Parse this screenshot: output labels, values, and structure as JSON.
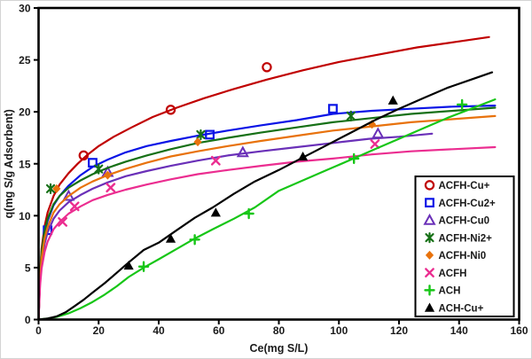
{
  "figure": {
    "background": "#ffffff",
    "frame_color": "#000000",
    "text_color": "#1a1a1a"
  },
  "chart_data": {
    "type": "scatter",
    "title": "",
    "xlabel": "Ce(mg S/L)",
    "ylabel": "q(mg  S/g Adsorbent)",
    "xlim": [
      0,
      160
    ],
    "ylim": [
      0,
      30
    ],
    "xticks": [
      0,
      20,
      40,
      60,
      80,
      100,
      120,
      140,
      160
    ],
    "yticks": [
      0,
      5,
      10,
      15,
      20,
      25,
      30
    ],
    "grid": false,
    "frame": true,
    "legend_position": "lower-right",
    "series": [
      {
        "name": "ACFH-Cu+",
        "color": "#c00000",
        "marker": "circle-open",
        "points": [
          [
            15,
            15.8
          ],
          [
            44,
            20.2
          ],
          [
            76,
            24.3
          ]
        ],
        "curve": [
          [
            0,
            0
          ],
          [
            0.5,
            4.5
          ],
          [
            1,
            6.8
          ],
          [
            2,
            9.0
          ],
          [
            3,
            10.3
          ],
          [
            5,
            11.9
          ],
          [
            7,
            13.0
          ],
          [
            10,
            14.1
          ],
          [
            13,
            15.0
          ],
          [
            16,
            15.8
          ],
          [
            20,
            16.7
          ],
          [
            25,
            17.6
          ],
          [
            31,
            18.5
          ],
          [
            38,
            19.5
          ],
          [
            46,
            20.4
          ],
          [
            55,
            21.3
          ],
          [
            65,
            22.2
          ],
          [
            76,
            23.1
          ],
          [
            88,
            24.0
          ],
          [
            100,
            24.8
          ],
          [
            113,
            25.5
          ],
          [
            126,
            26.2
          ],
          [
            138,
            26.7
          ],
          [
            150,
            27.2
          ]
        ]
      },
      {
        "name": "ACFH-Cu2+",
        "color": "#0a14e6",
        "marker": "square-open",
        "points": [
          [
            3,
            8.6
          ],
          [
            18,
            15.1
          ],
          [
            57,
            17.8
          ],
          [
            98,
            20.3
          ]
        ],
        "curve": [
          [
            0,
            0
          ],
          [
            0.5,
            4.2
          ],
          [
            1,
            6.2
          ],
          [
            2,
            8.3
          ],
          [
            3,
            9.5
          ],
          [
            5,
            11.0
          ],
          [
            7,
            11.9
          ],
          [
            10,
            12.9
          ],
          [
            14,
            13.9
          ],
          [
            18,
            14.7
          ],
          [
            23,
            15.4
          ],
          [
            29,
            16.1
          ],
          [
            36,
            16.7
          ],
          [
            44,
            17.2
          ],
          [
            53,
            17.7
          ],
          [
            63,
            18.2
          ],
          [
            74,
            18.7
          ],
          [
            86,
            19.2
          ],
          [
            98,
            19.8
          ],
          [
            111,
            20.1
          ],
          [
            124,
            20.3
          ],
          [
            138,
            20.5
          ],
          [
            152,
            20.6
          ]
        ]
      },
      {
        "name": "ACFH-Cu0",
        "color": "#6a30b8",
        "marker": "triangle-open",
        "points": [
          [
            10,
            11.9
          ],
          [
            23,
            14.2
          ],
          [
            68,
            16.1
          ],
          [
            113,
            17.9
          ]
        ],
        "curve": [
          [
            0,
            0
          ],
          [
            0.5,
            3.7
          ],
          [
            1,
            5.5
          ],
          [
            2,
            7.3
          ],
          [
            3,
            8.4
          ],
          [
            5,
            9.7
          ],
          [
            7,
            10.5
          ],
          [
            10,
            11.3
          ],
          [
            14,
            12.0
          ],
          [
            18,
            12.6
          ],
          [
            23,
            13.2
          ],
          [
            29,
            13.8
          ],
          [
            36,
            14.3
          ],
          [
            44,
            14.8
          ],
          [
            53,
            15.3
          ],
          [
            63,
            15.8
          ],
          [
            74,
            16.2
          ],
          [
            86,
            16.6
          ],
          [
            98,
            17.0
          ],
          [
            110,
            17.4
          ],
          [
            120,
            17.6
          ],
          [
            131,
            17.9
          ]
        ]
      },
      {
        "name": "ACFH-Ni2+",
        "color": "#167016",
        "marker": "asterisk",
        "points": [
          [
            4,
            12.6
          ],
          [
            20,
            14.5
          ],
          [
            54,
            17.8
          ],
          [
            104,
            19.6
          ]
        ],
        "curve": [
          [
            0,
            0
          ],
          [
            0.5,
            4.4
          ],
          [
            1,
            6.5
          ],
          [
            2,
            8.5
          ],
          [
            3,
            9.7
          ],
          [
            5,
            11.1
          ],
          [
            7,
            11.9
          ],
          [
            10,
            12.7
          ],
          [
            14,
            13.4
          ],
          [
            18,
            14.0
          ],
          [
            23,
            14.6
          ],
          [
            29,
            15.2
          ],
          [
            36,
            15.8
          ],
          [
            44,
            16.4
          ],
          [
            53,
            17.0
          ],
          [
            63,
            17.5
          ],
          [
            74,
            18.0
          ],
          [
            86,
            18.5
          ],
          [
            98,
            19.0
          ],
          [
            111,
            19.4
          ],
          [
            124,
            19.8
          ],
          [
            138,
            20.1
          ],
          [
            152,
            20.4
          ]
        ]
      },
      {
        "name": "ACFH-Ni0",
        "color": "#e8720c",
        "marker": "diamond-filled",
        "points": [
          [
            6,
            12.6
          ],
          [
            23,
            13.9
          ],
          [
            53,
            17.1
          ],
          [
            111,
            18.8
          ]
        ],
        "curve": [
          [
            0,
            0
          ],
          [
            0.5,
            4.0
          ],
          [
            1,
            5.9
          ],
          [
            2,
            7.8
          ],
          [
            3,
            8.9
          ],
          [
            5,
            10.3
          ],
          [
            7,
            11.1
          ],
          [
            10,
            11.9
          ],
          [
            14,
            12.7
          ],
          [
            18,
            13.3
          ],
          [
            23,
            13.9
          ],
          [
            29,
            14.5
          ],
          [
            36,
            15.1
          ],
          [
            44,
            15.7
          ],
          [
            53,
            16.2
          ],
          [
            63,
            16.7
          ],
          [
            74,
            17.2
          ],
          [
            86,
            17.7
          ],
          [
            98,
            18.2
          ],
          [
            111,
            18.6
          ],
          [
            124,
            19.0
          ],
          [
            138,
            19.3
          ],
          [
            152,
            19.6
          ]
        ]
      },
      {
        "name": "ACFH",
        "color": "#eb2d90",
        "marker": "x",
        "points": [
          [
            8,
            9.4
          ],
          [
            12,
            10.9
          ],
          [
            24,
            12.7
          ],
          [
            59,
            15.3
          ],
          [
            112,
            16.9
          ]
        ],
        "curve": [
          [
            0,
            0
          ],
          [
            0.5,
            3.3
          ],
          [
            1,
            4.9
          ],
          [
            2,
            6.5
          ],
          [
            3,
            7.5
          ],
          [
            5,
            8.7
          ],
          [
            7,
            9.4
          ],
          [
            10,
            10.2
          ],
          [
            14,
            10.9
          ],
          [
            18,
            11.5
          ],
          [
            23,
            12.0
          ],
          [
            29,
            12.5
          ],
          [
            36,
            13.0
          ],
          [
            44,
            13.5
          ],
          [
            53,
            14.0
          ],
          [
            63,
            14.4
          ],
          [
            74,
            14.8
          ],
          [
            86,
            15.2
          ],
          [
            98,
            15.5
          ],
          [
            111,
            15.9
          ],
          [
            124,
            16.2
          ],
          [
            138,
            16.4
          ],
          [
            152,
            16.6
          ]
        ]
      },
      {
        "name": "ACH",
        "color": "#17c617",
        "marker": "plus",
        "points": [
          [
            35,
            5.1
          ],
          [
            52,
            7.7
          ],
          [
            70,
            10.2
          ],
          [
            105,
            15.5
          ],
          [
            141,
            20.7
          ]
        ],
        "curve": [
          [
            0,
            0
          ],
          [
            3,
            0.1
          ],
          [
            6,
            0.25
          ],
          [
            10,
            0.6
          ],
          [
            14,
            1.1
          ],
          [
            18,
            1.7
          ],
          [
            22,
            2.4
          ],
          [
            26,
            3.2
          ],
          [
            30,
            4.1
          ],
          [
            35,
            5.0
          ],
          [
            40,
            5.8
          ],
          [
            46,
            6.8
          ],
          [
            52,
            7.8
          ],
          [
            58,
            8.7
          ],
          [
            65,
            9.7
          ],
          [
            72,
            10.8
          ],
          [
            80,
            12.4
          ],
          [
            88,
            13.4
          ],
          [
            96,
            14.4
          ],
          [
            104,
            15.4
          ],
          [
            112,
            16.4
          ],
          [
            120,
            17.4
          ],
          [
            128,
            18.4
          ],
          [
            136,
            19.4
          ],
          [
            144,
            20.3
          ],
          [
            152,
            21.2
          ]
        ]
      },
      {
        "name": "ACH-Cu+",
        "color": "#000000",
        "marker": "triangle-filled",
        "points": [
          [
            30,
            5.2
          ],
          [
            44,
            7.8
          ],
          [
            59,
            10.3
          ],
          [
            88,
            15.7
          ],
          [
            118,
            21.1
          ]
        ],
        "curve": [
          [
            0,
            0
          ],
          [
            3,
            0.1
          ],
          [
            6,
            0.3
          ],
          [
            9,
            0.7
          ],
          [
            12,
            1.3
          ],
          [
            15,
            1.9
          ],
          [
            18,
            2.6
          ],
          [
            22,
            3.5
          ],
          [
            26,
            4.5
          ],
          [
            30,
            5.5
          ],
          [
            35,
            6.7
          ],
          [
            40,
            7.4
          ],
          [
            46,
            8.6
          ],
          [
            52,
            9.8
          ],
          [
            58,
            10.8
          ],
          [
            65,
            12.1
          ],
          [
            72,
            13.3
          ],
          [
            80,
            14.4
          ],
          [
            88,
            15.6
          ],
          [
            96,
            16.8
          ],
          [
            104,
            18.0
          ],
          [
            112,
            19.2
          ],
          [
            120,
            20.3
          ],
          [
            128,
            21.3
          ],
          [
            136,
            22.3
          ],
          [
            144,
            23.1
          ],
          [
            151,
            23.8
          ]
        ]
      }
    ]
  }
}
